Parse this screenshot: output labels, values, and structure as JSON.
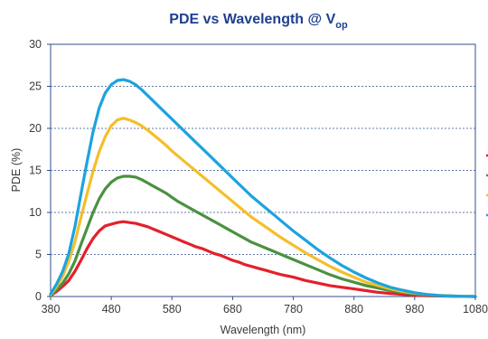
{
  "chart_data": {
    "type": "line",
    "title": "PDE vs Wavelength @ V",
    "title_subscript": "op",
    "xlabel": "Wavelength (nm)",
    "ylabel": "PDE (%)",
    "xlim": [
      380,
      1080
    ],
    "ylim": [
      0,
      30
    ],
    "x_ticks": [
      380,
      480,
      580,
      680,
      780,
      880,
      980,
      1080
    ],
    "y_ticks": [
      0,
      5,
      10,
      15,
      20,
      25,
      30
    ],
    "grid": "horizontal-dashed",
    "legend": "right",
    "x": [
      380,
      390,
      400,
      410,
      420,
      430,
      440,
      450,
      460,
      470,
      480,
      490,
      500,
      510,
      520,
      530,
      540,
      550,
      560,
      570,
      580,
      590,
      600,
      610,
      620,
      630,
      640,
      650,
      660,
      670,
      680,
      690,
      700,
      710,
      720,
      730,
      740,
      750,
      760,
      780,
      800,
      820,
      840,
      860,
      880,
      900,
      920,
      940,
      960,
      980,
      1000,
      1020,
      1040,
      1060,
      1080
    ],
    "series": [
      {
        "color": "#e3202a",
        "values": [
          0.1,
          0.6,
          1.2,
          1.9,
          3.0,
          4.3,
          5.7,
          6.9,
          7.8,
          8.4,
          8.6,
          8.8,
          8.9,
          8.8,
          8.7,
          8.5,
          8.3,
          8.0,
          7.7,
          7.4,
          7.1,
          6.8,
          6.5,
          6.2,
          5.9,
          5.7,
          5.4,
          5.1,
          4.9,
          4.6,
          4.3,
          4.1,
          3.8,
          3.6,
          3.4,
          3.2,
          3.0,
          2.8,
          2.6,
          2.3,
          1.9,
          1.6,
          1.3,
          1.1,
          0.9,
          0.7,
          0.5,
          0.35,
          0.25,
          0.15,
          0.1,
          0.06,
          0.03,
          0.01,
          0.0
        ]
      },
      {
        "color": "#4a9140",
        "values": [
          0.1,
          0.8,
          1.6,
          2.7,
          4.2,
          6.2,
          8.1,
          10.0,
          11.6,
          12.8,
          13.6,
          14.1,
          14.3,
          14.3,
          14.2,
          13.9,
          13.5,
          13.1,
          12.7,
          12.3,
          11.8,
          11.3,
          10.9,
          10.5,
          10.1,
          9.7,
          9.3,
          8.9,
          8.5,
          8.1,
          7.7,
          7.3,
          6.9,
          6.5,
          6.2,
          5.9,
          5.6,
          5.3,
          5.0,
          4.4,
          3.8,
          3.2,
          2.6,
          2.1,
          1.7,
          1.3,
          1.0,
          0.7,
          0.5,
          0.3,
          0.2,
          0.1,
          0.05,
          0.02,
          0.0
        ]
      },
      {
        "color": "#f5be2a",
        "values": [
          0.2,
          1.2,
          2.4,
          4.2,
          6.5,
          9.4,
          12.2,
          14.9,
          17.2,
          19.0,
          20.3,
          21.0,
          21.2,
          21.0,
          20.7,
          20.3,
          19.8,
          19.2,
          18.6,
          18.0,
          17.3,
          16.7,
          16.1,
          15.5,
          14.9,
          14.3,
          13.7,
          13.1,
          12.5,
          11.9,
          11.3,
          10.7,
          10.1,
          9.5,
          9.0,
          8.5,
          8.0,
          7.5,
          7.0,
          6.1,
          5.2,
          4.4,
          3.6,
          2.9,
          2.3,
          1.7,
          1.3,
          0.9,
          0.6,
          0.4,
          0.25,
          0.14,
          0.07,
          0.03,
          0.0
        ]
      },
      {
        "color": "#1ca3e0",
        "values": [
          0.3,
          1.5,
          3.0,
          5.1,
          8.3,
          12.2,
          16.0,
          19.6,
          22.4,
          24.2,
          25.2,
          25.7,
          25.8,
          25.6,
          25.2,
          24.6,
          23.9,
          23.2,
          22.5,
          21.8,
          21.1,
          20.4,
          19.7,
          19.0,
          18.3,
          17.6,
          16.9,
          16.2,
          15.5,
          14.8,
          14.1,
          13.4,
          12.7,
          12.0,
          11.4,
          10.8,
          10.2,
          9.6,
          9.0,
          7.8,
          6.7,
          5.6,
          4.6,
          3.7,
          2.9,
          2.2,
          1.6,
          1.1,
          0.75,
          0.45,
          0.25,
          0.13,
          0.06,
          0.02,
          0.0
        ]
      }
    ]
  }
}
